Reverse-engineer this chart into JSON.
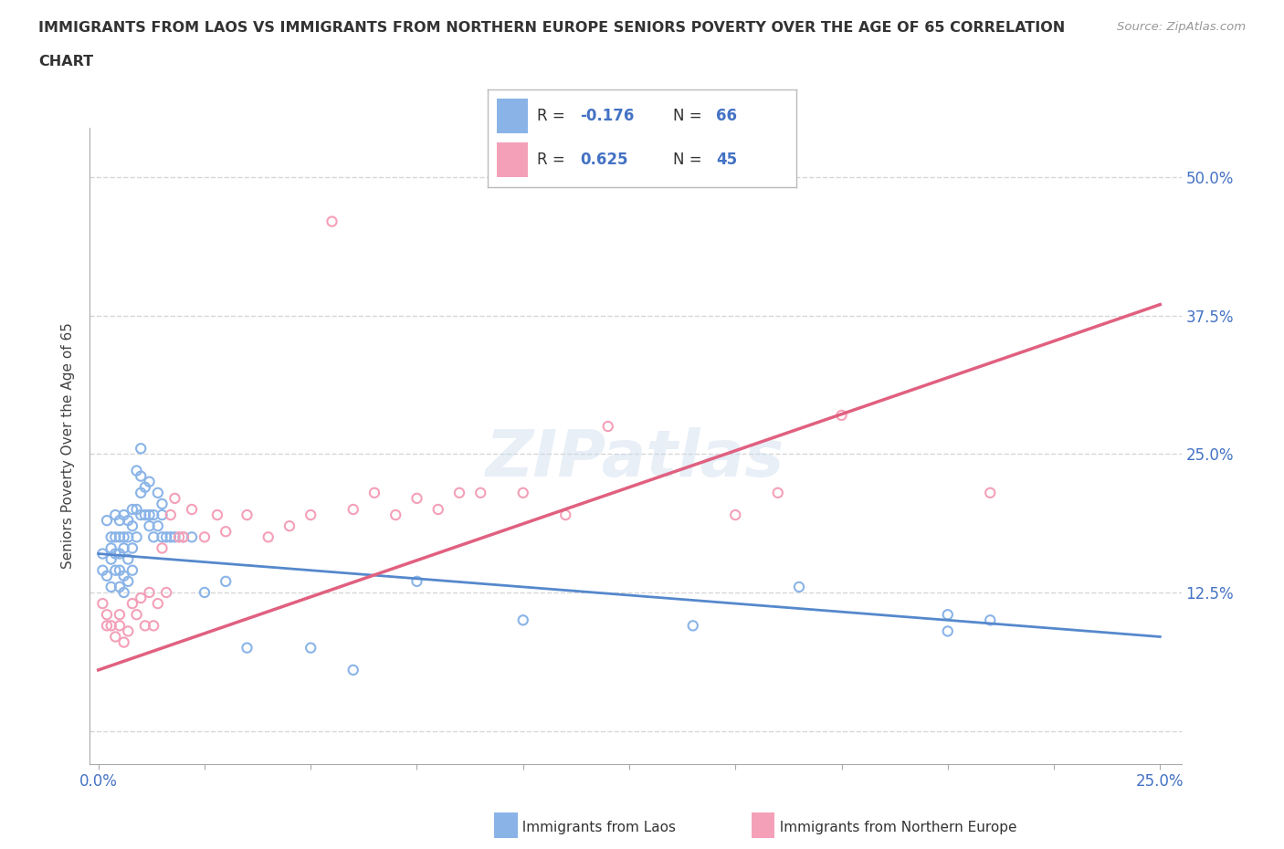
{
  "title_line1": "IMMIGRANTS FROM LAOS VS IMMIGRANTS FROM NORTHERN EUROPE SENIORS POVERTY OVER THE AGE OF 65 CORRELATION",
  "title_line2": "CHART",
  "source": "Source: ZipAtlas.com",
  "ylabel": "Seniors Poverty Over the Age of 65",
  "xlim": [
    -0.002,
    0.255
  ],
  "ylim": [
    -0.03,
    0.545
  ],
  "yticks": [
    0.0,
    0.125,
    0.25,
    0.375,
    0.5
  ],
  "ytick_labels": [
    "",
    "12.5%",
    "25.0%",
    "37.5%",
    "50.0%"
  ],
  "xticks": [
    0.0,
    0.025,
    0.05,
    0.075,
    0.1,
    0.125,
    0.15,
    0.175,
    0.2,
    0.225,
    0.25
  ],
  "xtick_labels": [
    "0.0%",
    "",
    "",
    "",
    "",
    "",
    "",
    "",
    "",
    "",
    "25.0%"
  ],
  "legend_R1": "-0.176",
  "legend_N1": "66",
  "legend_R2": "0.625",
  "legend_N2": "45",
  "color_laos": "#8ab4e8",
  "color_northern_europe": "#f4a0b8",
  "color_laos_line": "#5588cc",
  "color_ne_line": "#e06080",
  "color_axis_text": "#4472c4",
  "color_axis_text_pink": "#e06080",
  "laos_scatter_x": [
    0.001,
    0.001,
    0.002,
    0.002,
    0.003,
    0.003,
    0.003,
    0.003,
    0.004,
    0.004,
    0.004,
    0.004,
    0.005,
    0.005,
    0.005,
    0.005,
    0.005,
    0.006,
    0.006,
    0.006,
    0.006,
    0.006,
    0.007,
    0.007,
    0.007,
    0.007,
    0.008,
    0.008,
    0.008,
    0.008,
    0.009,
    0.009,
    0.009,
    0.01,
    0.01,
    0.01,
    0.01,
    0.011,
    0.011,
    0.012,
    0.012,
    0.012,
    0.013,
    0.013,
    0.014,
    0.014,
    0.015,
    0.015,
    0.015,
    0.016,
    0.017,
    0.018,
    0.02,
    0.022,
    0.025,
    0.03,
    0.035,
    0.05,
    0.06,
    0.075,
    0.1,
    0.14,
    0.165,
    0.2,
    0.2,
    0.21
  ],
  "laos_scatter_y": [
    0.145,
    0.16,
    0.14,
    0.19,
    0.13,
    0.155,
    0.165,
    0.175,
    0.145,
    0.16,
    0.175,
    0.195,
    0.13,
    0.145,
    0.16,
    0.175,
    0.19,
    0.125,
    0.14,
    0.165,
    0.175,
    0.195,
    0.135,
    0.155,
    0.175,
    0.19,
    0.145,
    0.165,
    0.185,
    0.2,
    0.175,
    0.2,
    0.235,
    0.195,
    0.215,
    0.23,
    0.255,
    0.195,
    0.22,
    0.185,
    0.195,
    0.225,
    0.175,
    0.195,
    0.185,
    0.215,
    0.175,
    0.195,
    0.205,
    0.175,
    0.175,
    0.175,
    0.175,
    0.175,
    0.125,
    0.135,
    0.075,
    0.075,
    0.055,
    0.135,
    0.1,
    0.095,
    0.13,
    0.09,
    0.105,
    0.1
  ],
  "ne_scatter_x": [
    0.001,
    0.002,
    0.002,
    0.003,
    0.004,
    0.005,
    0.005,
    0.006,
    0.007,
    0.008,
    0.009,
    0.01,
    0.011,
    0.012,
    0.013,
    0.014,
    0.015,
    0.016,
    0.017,
    0.018,
    0.019,
    0.02,
    0.022,
    0.025,
    0.028,
    0.03,
    0.035,
    0.04,
    0.045,
    0.05,
    0.055,
    0.06,
    0.065,
    0.07,
    0.075,
    0.08,
    0.085,
    0.09,
    0.1,
    0.11,
    0.12,
    0.15,
    0.16,
    0.175,
    0.21
  ],
  "ne_scatter_y": [
    0.115,
    0.095,
    0.105,
    0.095,
    0.085,
    0.095,
    0.105,
    0.08,
    0.09,
    0.115,
    0.105,
    0.12,
    0.095,
    0.125,
    0.095,
    0.115,
    0.165,
    0.125,
    0.195,
    0.21,
    0.175,
    0.175,
    0.2,
    0.175,
    0.195,
    0.18,
    0.195,
    0.175,
    0.185,
    0.195,
    0.46,
    0.2,
    0.215,
    0.195,
    0.21,
    0.2,
    0.215,
    0.215,
    0.215,
    0.195,
    0.275,
    0.195,
    0.215,
    0.285,
    0.215
  ],
  "laos_line_x": [
    0.0,
    0.25
  ],
  "laos_line_y": [
    0.16,
    0.085
  ],
  "ne_line_x": [
    0.0,
    0.25
  ],
  "ne_line_y": [
    0.055,
    0.385
  ],
  "grid_color": "#cccccc",
  "grid_linestyle": "--",
  "bg_color": "#ffffff"
}
